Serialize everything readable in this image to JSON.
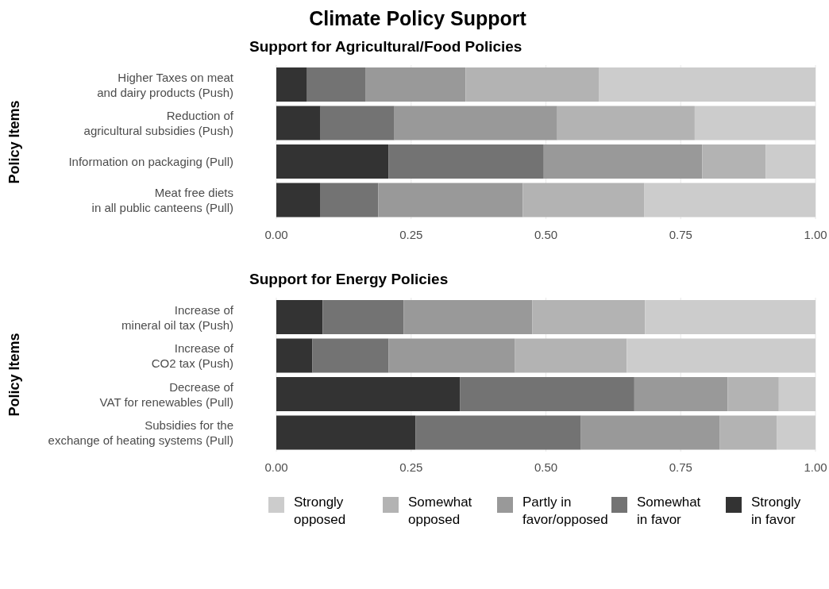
{
  "chart_data": [
    {
      "type": "bar",
      "orientation": "horizontal",
      "stacked": true,
      "title": "Climate Policy Support",
      "subtitle": "Support for Agricultural/Food Policies",
      "ylabel": "Policy Items",
      "categories": [
        "Higher Taxes on meat\nand dairy products (Push)",
        "Reduction of\nagricultural subsidies (Push)",
        "Information on packaging (Pull)",
        "Meat free diets\nin all public canteens (Pull)"
      ],
      "series": [
        {
          "color": "#333333",
          "values": [
            0.057,
            0.082,
            0.208,
            0.081
          ]
        },
        {
          "color": "#737373",
          "values": [
            0.108,
            0.137,
            0.288,
            0.108
          ]
        },
        {
          "color": "#999999",
          "values": [
            0.186,
            0.302,
            0.294,
            0.268
          ]
        },
        {
          "color": "#b3b3b3",
          "values": [
            0.247,
            0.255,
            0.118,
            0.225
          ]
        },
        {
          "color": "#cccccc",
          "values": [
            0.402,
            0.224,
            0.092,
            0.318
          ]
        }
      ],
      "xlim": [
        0,
        1
      ],
      "xticks": [
        {
          "value": 0,
          "label": "0.00"
        },
        {
          "value": 0.25,
          "label": "0.25"
        },
        {
          "value": 0.5,
          "label": "0.50"
        },
        {
          "value": 0.75,
          "label": "0.75"
        },
        {
          "value": 1,
          "label": "1.00"
        }
      ],
      "grid": "x",
      "legend": false
    },
    {
      "type": "bar",
      "orientation": "horizontal",
      "stacked": true,
      "subtitle": "Support for Energy Policies",
      "ylabel": "Policy Items",
      "categories": [
        "Increase of\nmineral oil tax (Push)",
        "Increase of\nCO2 tax (Push)",
        "Decrease of\nVAT for renewables (Pull)",
        "Subsidies for the\nexchange of heating systems (Pull)"
      ],
      "series": [
        {
          "name": "Strongly in favor",
          "color": "#333333",
          "values": [
            0.086,
            0.067,
            0.341,
            0.258
          ]
        },
        {
          "name": "Somewhat in favor",
          "color": "#737373",
          "values": [
            0.15,
            0.141,
            0.323,
            0.307
          ]
        },
        {
          "name": "Partly in favor/opposed",
          "color": "#999999",
          "values": [
            0.239,
            0.234,
            0.173,
            0.257
          ]
        },
        {
          "name": "Somewhat opposed",
          "color": "#b3b3b3",
          "values": [
            0.209,
            0.208,
            0.095,
            0.106
          ]
        },
        {
          "name": "Strongly opposed",
          "color": "#cccccc",
          "values": [
            0.316,
            0.35,
            0.068,
            0.072
          ]
        }
      ],
      "xlim": [
        0,
        1
      ],
      "xticks": [
        {
          "value": 0,
          "label": "0.00"
        },
        {
          "value": 0.25,
          "label": "0.25"
        },
        {
          "value": 0.5,
          "label": "0.50"
        },
        {
          "value": 0.75,
          "label": "0.75"
        },
        {
          "value": 1,
          "label": "1.00"
        }
      ],
      "grid": "x",
      "legend": "bottom"
    }
  ]
}
